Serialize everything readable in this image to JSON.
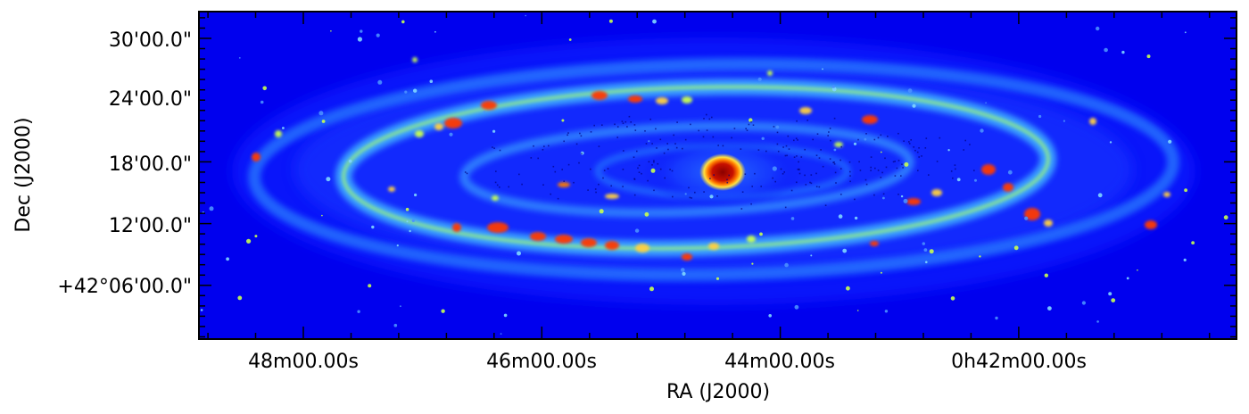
{
  "figure": {
    "xlabel": "RA (J2000)",
    "ylabel": "Dec (J2000)",
    "x_tick_labels": [
      "48m00.00s",
      "46m00.00s",
      "44m00.00s",
      "0h42m00.00s"
    ],
    "y_tick_labels": [
      "30'00.0\"",
      "24'00.0\"",
      "18'00.0\"",
      "12'00.0\"",
      "+42°06'00.0\""
    ],
    "colormap": "jet",
    "colors": {
      "background": "#0000ee",
      "low": "#0a1aff",
      "mid": "#3aa0ff",
      "high": "#c8ff50",
      "peak": "#ff3a00",
      "core": "#a00000"
    }
  }
}
